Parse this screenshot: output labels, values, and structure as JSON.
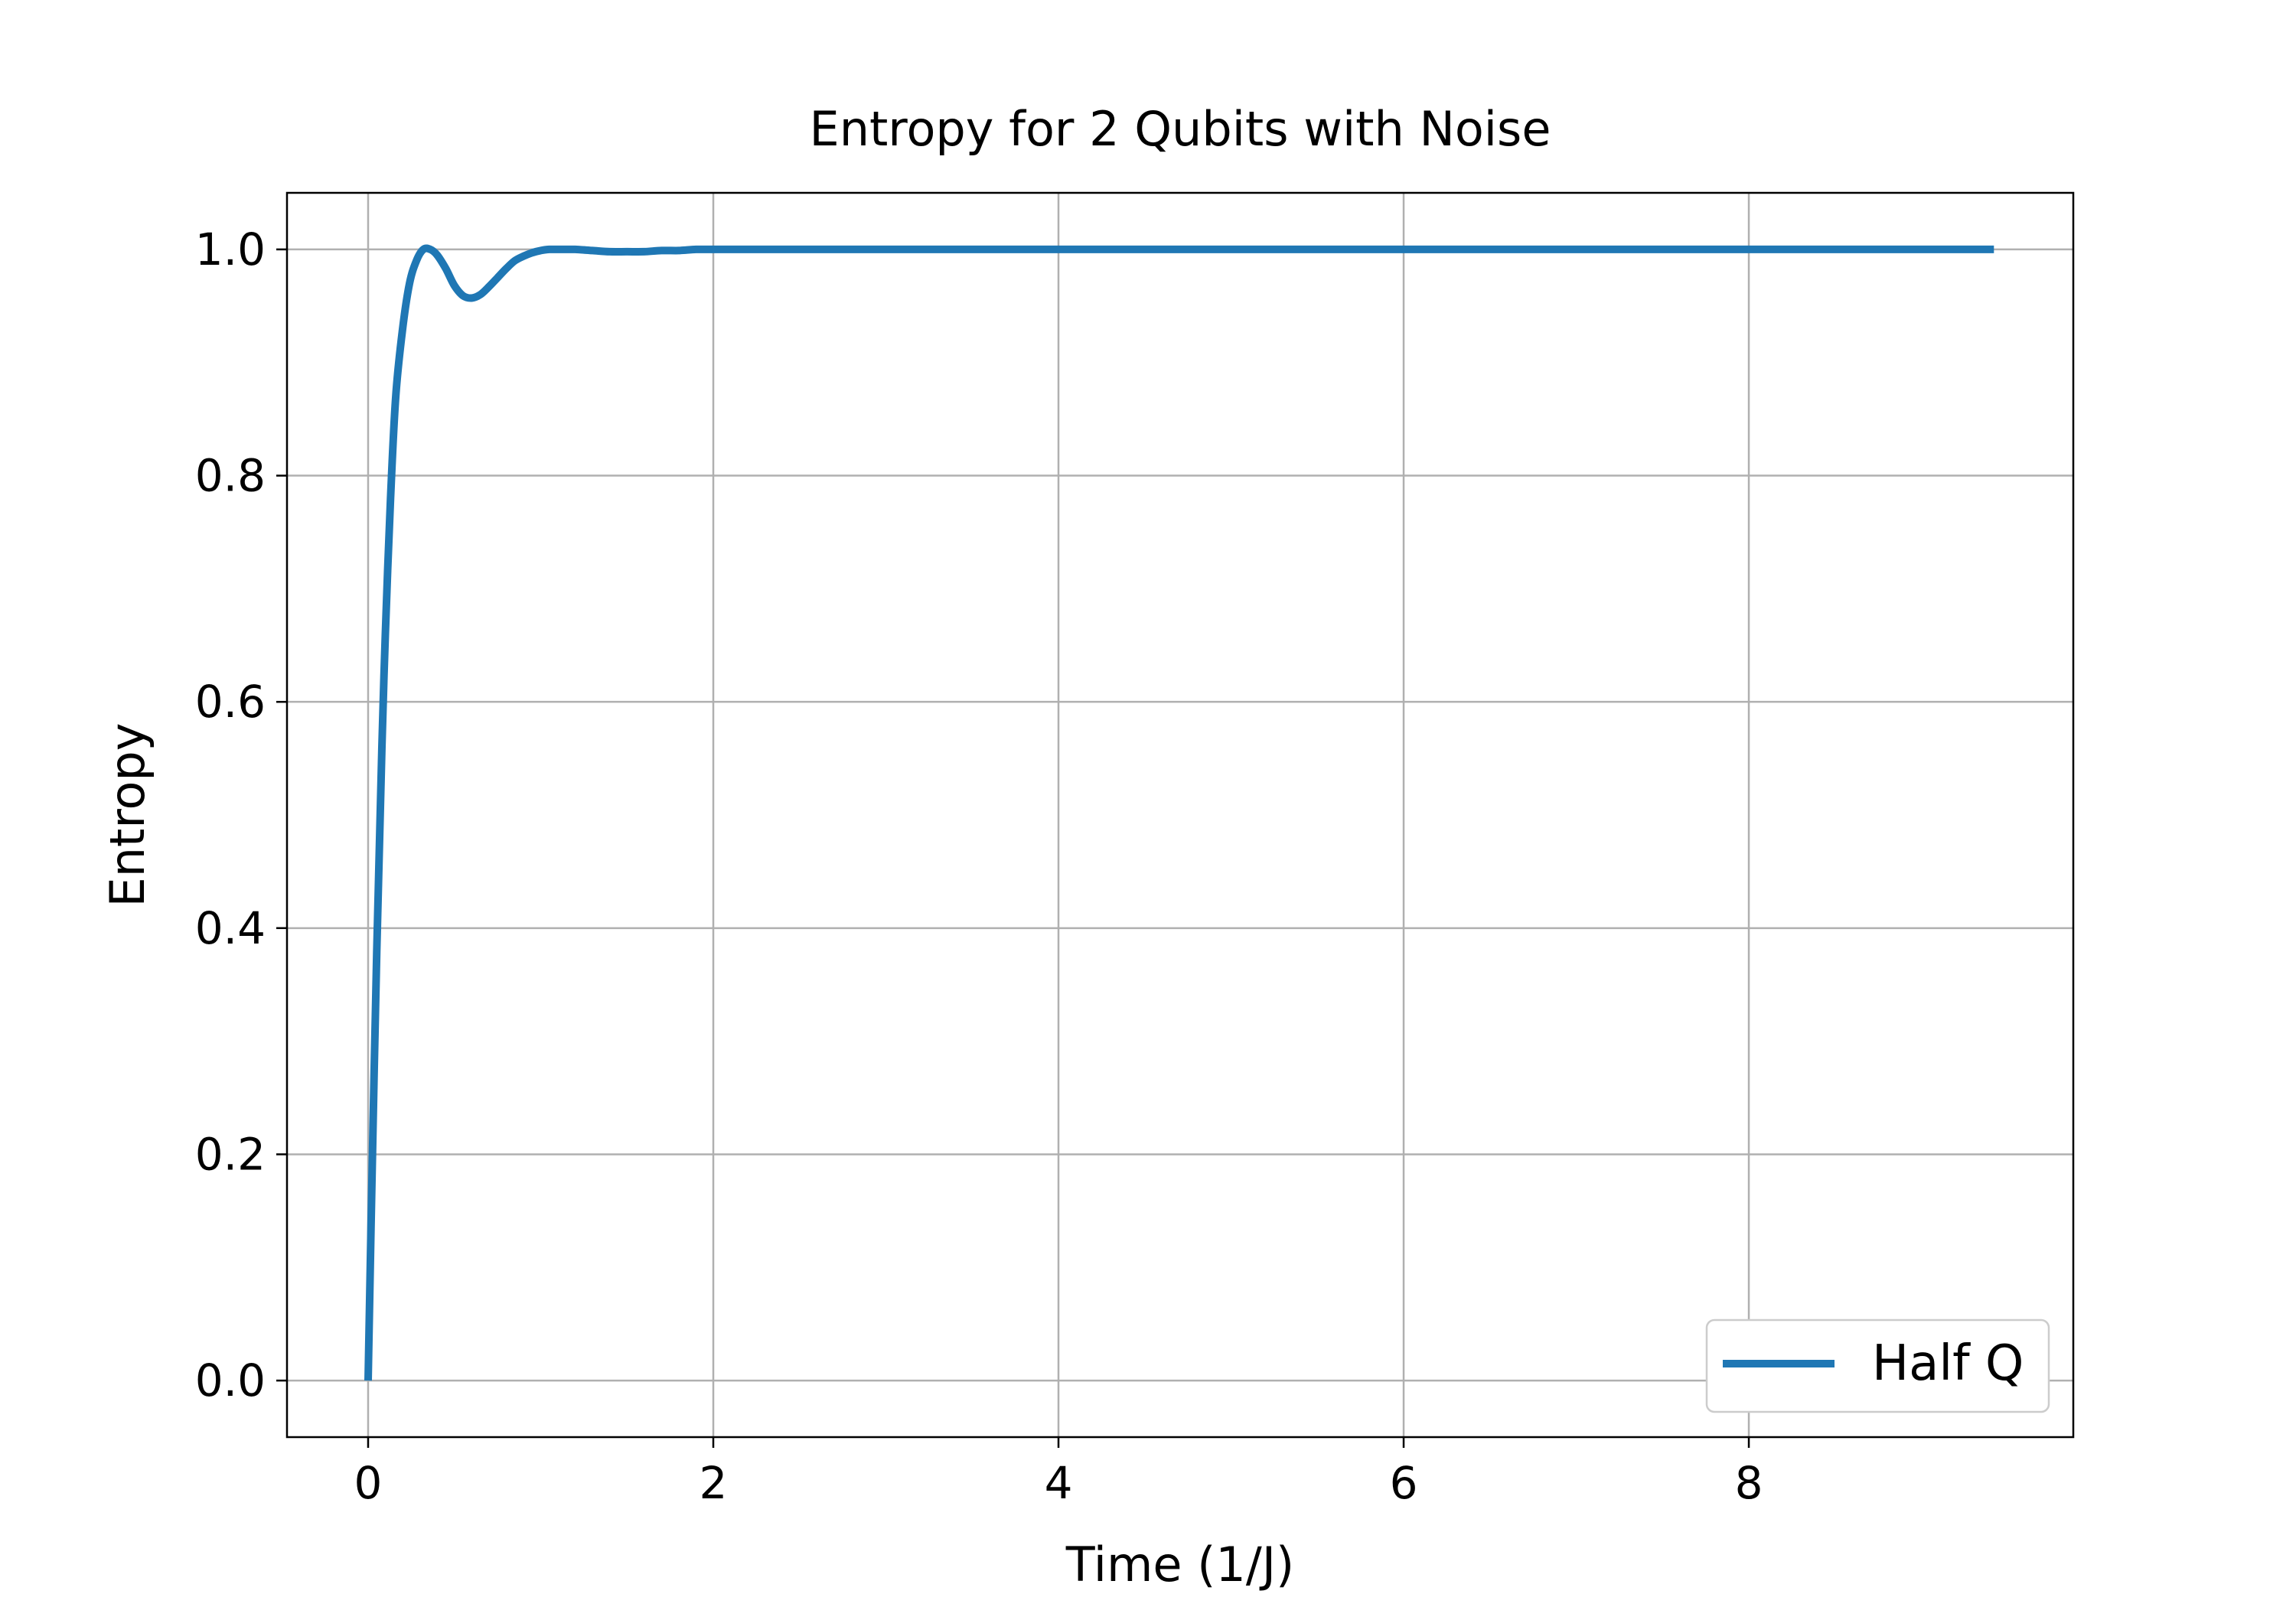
{
  "chart_data": {
    "type": "line",
    "title": "Entropy for 2 Qubits with Noise",
    "xlabel": "Time (1/J)",
    "ylabel": "Entropy",
    "xlim": [
      -0.47,
      9.88
    ],
    "ylim": [
      -0.05,
      1.05
    ],
    "xticks": [
      0,
      2,
      4,
      6,
      8
    ],
    "xtick_labels": [
      "0",
      "2",
      "4",
      "6",
      "8"
    ],
    "yticks": [
      0.0,
      0.2,
      0.4,
      0.6,
      0.8,
      1.0
    ],
    "ytick_labels": [
      "0.0",
      "0.2",
      "0.4",
      "0.6",
      "0.8",
      "1.0"
    ],
    "grid": true,
    "legend_position": "lower right",
    "series": [
      {
        "name": "Half Q",
        "color": "#1f77b4",
        "x": [
          0,
          0.02,
          0.05,
          0.08,
          0.1,
          0.13,
          0.16,
          0.2,
          0.24,
          0.28,
          0.32,
          0.36,
          0.4,
          0.45,
          0.5,
          0.55,
          0.6,
          0.65,
          0.7,
          0.75,
          0.8,
          0.85,
          0.9,
          0.95,
          1.0,
          1.05,
          1.1,
          1.15,
          1.2,
          1.3,
          1.4,
          1.5,
          1.6,
          1.7,
          1.8,
          1.9,
          2.0,
          2.5,
          3.0,
          4.0,
          5.0,
          6.0,
          7.0,
          8.0,
          9.0,
          9.42
        ],
        "y": [
          0.0,
          0.16,
          0.38,
          0.56,
          0.66,
          0.78,
          0.87,
          0.93,
          0.97,
          0.99,
          1.0,
          1.0,
          0.995,
          0.983,
          0.968,
          0.959,
          0.957,
          0.96,
          0.967,
          0.975,
          0.983,
          0.99,
          0.994,
          0.997,
          0.999,
          1.0,
          1.0,
          1.0,
          1.0,
          0.999,
          0.998,
          0.998,
          0.998,
          0.999,
          0.999,
          1.0,
          1.0,
          1.0,
          1.0,
          1.0,
          1.0,
          1.0,
          1.0,
          1.0,
          1.0,
          1.0
        ]
      }
    ]
  }
}
